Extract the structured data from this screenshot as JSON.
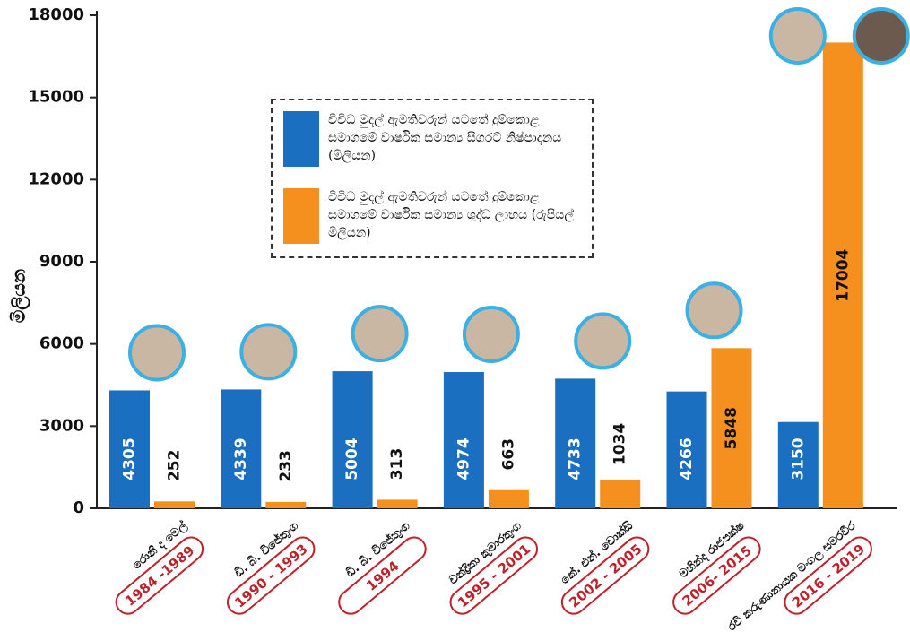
{
  "chart_data": {
    "type": "bar",
    "y_label": "මිලියන",
    "categories": [
      {
        "name": "රොනී ද මෙල්",
        "years": "1984 -1989"
      },
      {
        "name": "ඩී. බී. විජේතුංග",
        "years": "1990 - 1993"
      },
      {
        "name": "ඩී. බී. විජේතුංග",
        "years": "1994"
      },
      {
        "name": "චන්ද්‍රිකා කුමාරතුංග",
        "years": "1995 - 2001"
      },
      {
        "name": "කේ. එන්. චොක්සි",
        "years": "2002 - 2005"
      },
      {
        "name": "මහින්ද රාජපක්ෂ",
        "years": "2006- 2015"
      },
      {
        "name": "රවි කරුණානායක මංගල සමරවීර",
        "years": "2016 - 2019"
      }
    ],
    "series": [
      {
        "name": "විවිධ මුදල් ඇමතිවරුන් යටතේ දුම්කොළ සමාගමේ වාර්ෂික සමාන්‍ය සිගරට් නිෂ්පාදනය (මිලියන)",
        "color": "#1a6fc0",
        "values": [
          4305,
          4339,
          5004,
          4974,
          4733,
          4266,
          3150
        ]
      },
      {
        "name": "විවිධ මුදල් ඇමතිවරුන් යටතේ දුම්කොළ සමාගමේ වාර්ෂික සමාන්‍ය ශුද්ධ ලාභය (රුපියල් මිලියන)",
        "color": "#f5901e",
        "values": [
          252,
          233,
          313,
          663,
          1034,
          5848,
          17004
        ]
      }
    ],
    "ylim": [
      0,
      18000
    ],
    "yticks": [
      0,
      3000,
      6000,
      9000,
      12000,
      15000,
      18000
    ]
  }
}
